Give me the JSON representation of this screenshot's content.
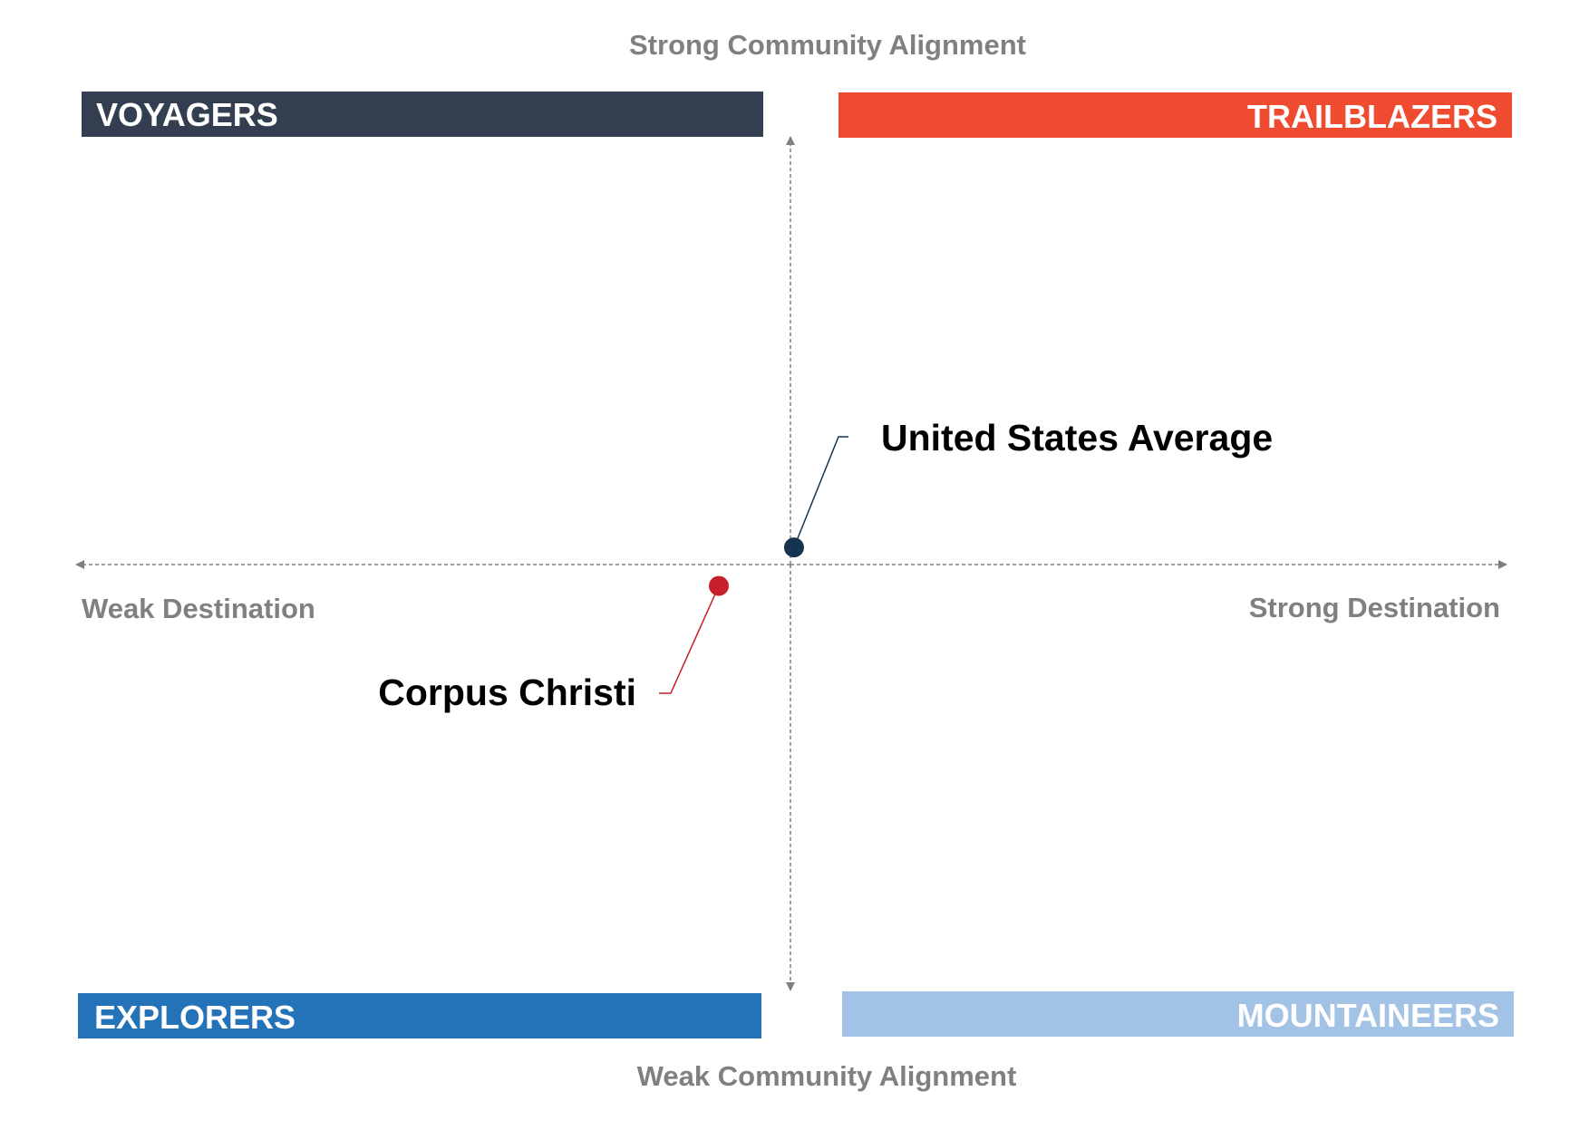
{
  "chart_data": {
    "type": "scatter",
    "title": "",
    "axes": {
      "top_label": "Strong Community Alignment",
      "bottom_label": "Weak Community Alignment",
      "left_label": "Weak Destination",
      "right_label": "Strong Destination",
      "xlim": [
        -1,
        1
      ],
      "ylim": [
        -1,
        1
      ],
      "grid": false
    },
    "quadrants": [
      {
        "label": "VOYAGERS",
        "position": "top-left",
        "color": "#333f50"
      },
      {
        "label": "TRAILBLAZERS",
        "position": "top-right",
        "color": "#ee4b30"
      },
      {
        "label": "EXPLORERS",
        "position": "bottom-left",
        "color": "#2473b8"
      },
      {
        "label": "MOUNTAINEERS",
        "position": "bottom-right",
        "color": "#a3c3e6"
      }
    ],
    "points": [
      {
        "label": "United States Average",
        "x": 0.005,
        "y": 0.04,
        "color": "#17344f"
      },
      {
        "label": "Corpus Christi",
        "x": -0.1,
        "y": -0.05,
        "color": "#c8202a"
      }
    ]
  }
}
